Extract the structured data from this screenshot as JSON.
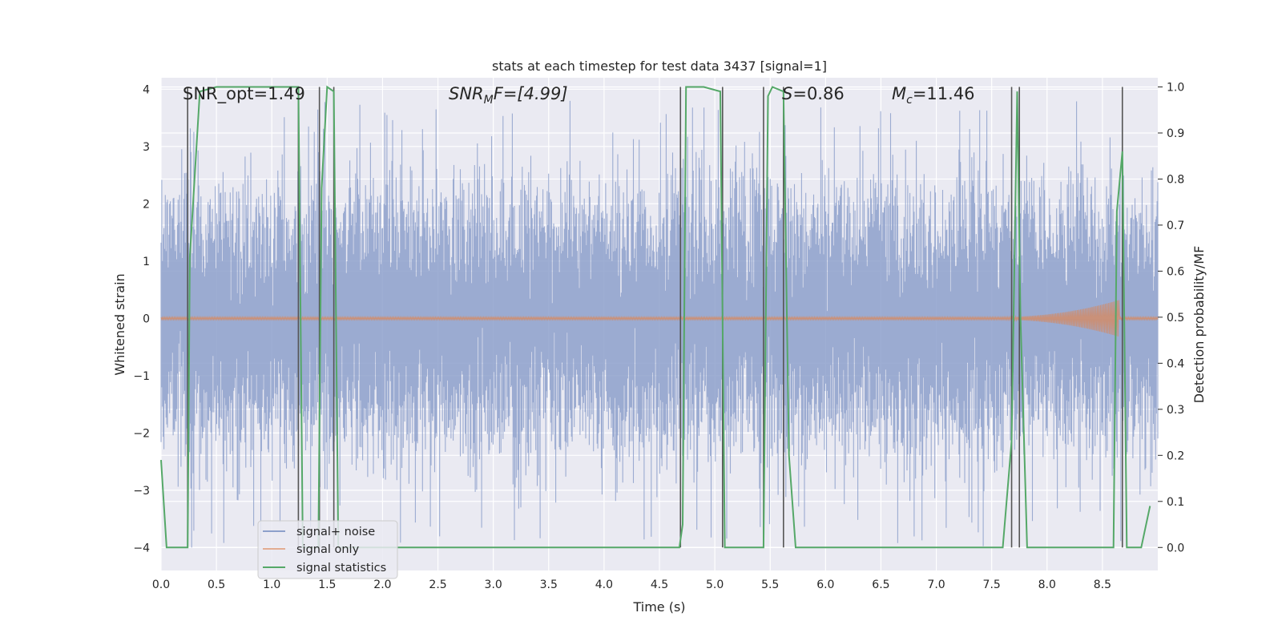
{
  "chart_data": {
    "type": "line",
    "title": "stats at each timestep for test data 3437 [signal=1]",
    "xlabel": "Time (s)",
    "ylabel_left": "Whitened strain",
    "ylabel_right": "Detection probability/MF",
    "xlim": [
      0.0,
      9.0
    ],
    "ylim_left": [
      -4.4,
      4.2
    ],
    "ylim_right": [
      -0.05,
      1.02
    ],
    "xticks": [
      0.0,
      0.5,
      1.0,
      1.5,
      2.0,
      2.5,
      3.0,
      3.5,
      4.0,
      4.5,
      5.0,
      5.5,
      6.0,
      6.5,
      7.0,
      7.5,
      8.0,
      8.5
    ],
    "xtick_labels": [
      "0.0",
      "0.5",
      "1.0",
      "1.5",
      "2.0",
      "2.5",
      "3.0",
      "3.5",
      "4.0",
      "4.5",
      "5.0",
      "5.5",
      "6.0",
      "6.5",
      "7.0",
      "7.5",
      "8.0",
      "8.5"
    ],
    "yticks_left": [
      -4,
      -3,
      -2,
      -1,
      0,
      1,
      2,
      3,
      4
    ],
    "ytick_labels_left": [
      "−4",
      "−3",
      "−2",
      "−1",
      "0",
      "1",
      "2",
      "3",
      "4"
    ],
    "yticks_right": [
      0.0,
      0.1,
      0.2,
      0.3,
      0.4,
      0.5,
      0.6,
      0.7,
      0.8,
      0.9,
      1.0
    ],
    "ytick_labels_right": [
      "0.0",
      "0.1",
      "0.2",
      "0.3",
      "0.4",
      "0.5",
      "0.6",
      "0.7",
      "0.8",
      "0.9",
      "1.0"
    ],
    "annotations": {
      "snr_opt": "SNR_opt=1.49",
      "snr_mf_name": "SNR",
      "snr_mf_sub": "M",
      "snr_mf_rest": "F=[4.99]",
      "s_name": "S",
      "s_value": "=0.86",
      "mc_name": "M",
      "mc_sub": "c",
      "mc_value": "=11.46"
    },
    "legend": {
      "placement": "lower-left",
      "entries": [
        "signal+ noise",
        "signal only",
        "signal statistics"
      ]
    },
    "colors": {
      "noise": "#8da0cb",
      "signal": "#dd8452",
      "statistics": "#55a868",
      "grid_bg": "#eaeaf2",
      "vlines": "#555555"
    },
    "noise_band": {
      "typical_amplitude": 2.0,
      "max_amplitude": 3.8,
      "min_amplitude": -4.0
    },
    "signal_chirp": {
      "onset_time": 7.5,
      "merger_time": 8.65,
      "peak_amplitude": 0.3
    },
    "statistics_series": {
      "name": "signal statistics",
      "x": [
        0.0,
        0.05,
        0.24,
        0.26,
        0.35,
        0.5,
        1.0,
        1.24,
        1.28,
        1.31,
        1.42,
        1.45,
        1.5,
        1.56,
        1.6,
        2.0,
        3.0,
        4.0,
        4.68,
        4.71,
        4.74,
        4.9,
        5.05,
        5.09,
        5.13,
        5.44,
        5.48,
        5.52,
        5.62,
        5.67,
        5.73,
        6.0,
        7.0,
        7.6,
        7.68,
        7.73,
        7.76,
        7.82,
        7.87,
        8.0,
        8.5,
        8.6,
        8.63,
        8.68,
        8.72,
        8.8,
        8.85,
        8.93
      ],
      "y": [
        0.19,
        0.0,
        0.0,
        0.63,
        0.99,
        1.0,
        1.0,
        1.0,
        0.0,
        0.0,
        0.0,
        0.78,
        1.0,
        0.99,
        0.0,
        0.0,
        0.0,
        0.0,
        0.0,
        0.05,
        1.0,
        1.0,
        0.99,
        0.0,
        0.0,
        0.0,
        0.98,
        1.0,
        0.99,
        0.2,
        0.0,
        0.0,
        0.0,
        0.0,
        0.23,
        0.99,
        0.5,
        0.0,
        0.0,
        0.0,
        0.0,
        0.0,
        0.73,
        0.86,
        0.0,
        0.0,
        0.0,
        0.09
      ]
    },
    "vertical_lines": [
      0.24,
      1.24,
      1.43,
      1.56,
      4.69,
      5.07,
      5.44,
      5.62,
      7.68,
      7.75,
      8.68
    ]
  }
}
